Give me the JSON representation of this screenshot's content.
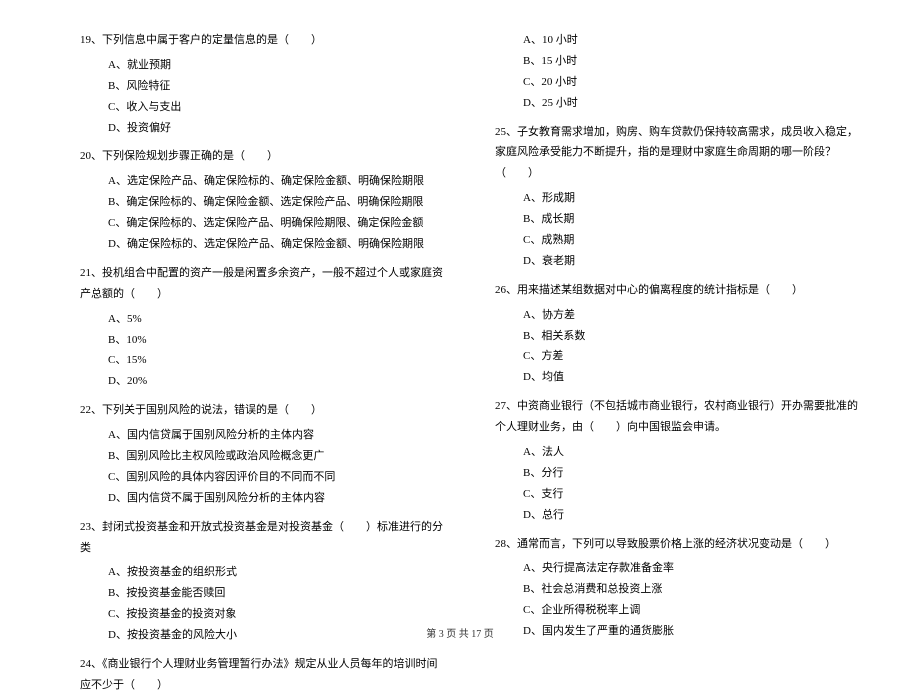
{
  "left_column": {
    "q19": {
      "text": "19、下列信息中属于客户的定量信息的是（　　）",
      "options": [
        "A、就业预期",
        "B、风险特征",
        "C、收入与支出",
        "D、投资偏好"
      ]
    },
    "q20": {
      "text": "20、下列保险规划步骤正确的是（　　）",
      "options": [
        "A、选定保险产品、确定保险标的、确定保险金额、明确保险期限",
        "B、确定保险标的、确定保险金额、选定保险产品、明确保险期限",
        "C、确定保险标的、选定保险产品、明确保险期限、确定保险金额",
        "D、确定保险标的、选定保险产品、确定保险金额、明确保险期限"
      ]
    },
    "q21": {
      "text": "21、投机组合中配置的资产一般是闲置多余资产，一般不超过个人或家庭资产总额的（　　）",
      "options": [
        "A、5%",
        "B、10%",
        "C、15%",
        "D、20%"
      ]
    },
    "q22": {
      "text": "22、下列关于国别风险的说法，错误的是（　　）",
      "options": [
        "A、国内信贷属于国别风险分析的主体内容",
        "B、国别风险比主权风险或政治风险概念更广",
        "C、国别风险的具体内容因评价目的不同而不同",
        "D、国内信贷不属于国别风险分析的主体内容"
      ]
    },
    "q23": {
      "text": "23、封闭式投资基金和开放式投资基金是对投资基金（　　）标准进行的分类",
      "options": [
        "A、按投资基金的组织形式",
        "B、按投资基金能否赎回",
        "C、按投资基金的投资对象",
        "D、按投资基金的风险大小"
      ]
    },
    "q24": {
      "text": "24、《商业银行个人理财业务管理暂行办法》规定从业人员每年的培训时间应不少于（　　）"
    }
  },
  "right_column": {
    "q24_options": [
      "A、10 小时",
      "B、15 小时",
      "C、20 小时",
      "D、25 小时"
    ],
    "q25": {
      "text": "25、子女教育需求增加，购房、购车贷款仍保持较高需求，成员收入稳定，家庭风险承受能力不断提升，指的是理财中家庭生命周期的哪一阶段？（　　）",
      "options": [
        "A、形成期",
        "B、成长期",
        "C、成熟期",
        "D、衰老期"
      ]
    },
    "q26": {
      "text": "26、用来描述某组数据对中心的偏离程度的统计指标是（　　）",
      "options": [
        "A、协方差",
        "B、相关系数",
        "C、方差",
        "D、均值"
      ]
    },
    "q27": {
      "text": "27、中资商业银行（不包括城市商业银行，农村商业银行）开办需要批准的个人理财业务，由（　　）向中国银监会申请。",
      "options": [
        "A、法人",
        "B、分行",
        "C、支行",
        "D、总行"
      ]
    },
    "q28": {
      "text": "28、通常而言，下列可以导致股票价格上涨的经济状况变动是（　　）",
      "options": [
        "A、央行提高法定存款准备金率",
        "B、社会总消费和总投资上涨",
        "C、企业所得税税率上调",
        "D、国内发生了严重的通货膨胀"
      ]
    }
  },
  "footer": "第 3 页 共 17 页"
}
